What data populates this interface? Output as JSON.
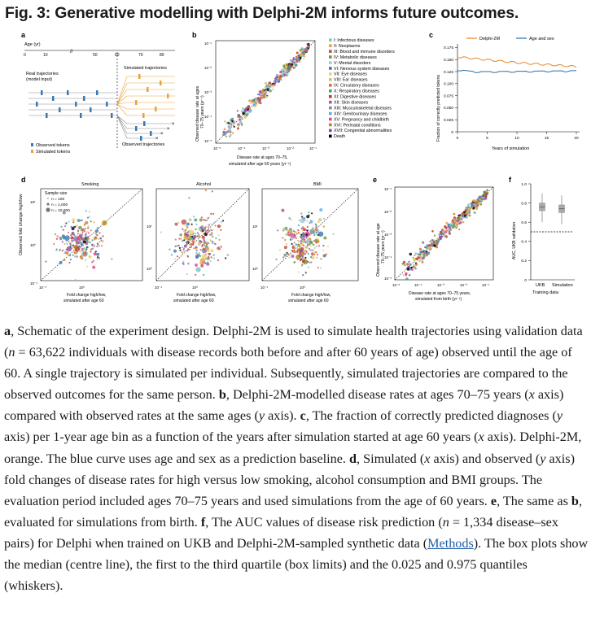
{
  "title": "Fig. 3: Generative modelling with Delphi-2M informs future outcomes.",
  "panel_a": {
    "letter": "a",
    "axis_label": "Age (yr)",
    "ticks": [
      "0",
      "10",
      "50",
      "60",
      "70",
      "80"
    ],
    "sim_label": "Simulated trajectories",
    "real_label_1": "Real trajectories",
    "real_label_2": "(model input)",
    "obs_label": "Observed trajectories",
    "legend_observed": "Observed tokens",
    "legend_simulated": "Simulated tokens"
  },
  "panel_b": {
    "letter": "b",
    "ylabel_1": "Observed disease rate at ages",
    "ylabel_2": "70–75 years (yr⁻¹)",
    "xlabel_1": "Disease rate at ages 70–75,",
    "xlabel_2": "simulated after age 60 years (yr⁻¹)",
    "ticks": [
      "10⁻⁵",
      "10⁻⁴",
      "10⁻³",
      "10⁻²",
      "10⁻¹"
    ],
    "legend": [
      {
        "label": "I: Infectious diseases",
        "color": "#7fc6c7"
      },
      {
        "label": "II: Neoplasms",
        "color": "#e7a33a"
      },
      {
        "label": "III: Blood and immune disorders",
        "color": "#c0504d"
      },
      {
        "label": "IV: Metabolic diseases",
        "color": "#6a9a3b"
      },
      {
        "label": "V: Mental disorders",
        "color": "#a5c8e0"
      },
      {
        "label": "VI: Nervous system diseases",
        "color": "#3a78b0"
      },
      {
        "label": "VII: Eye diseases",
        "color": "#e8d46a"
      },
      {
        "label": "VIII: Ear diseases",
        "color": "#c8c28a"
      },
      {
        "label": "IX: Circulatory diseases",
        "color": "#e07030"
      },
      {
        "label": "X: Respiratory diseases",
        "color": "#3aa58a"
      },
      {
        "label": "XI: Digestive diseases",
        "color": "#c0392b"
      },
      {
        "label": "XII: Skin diseases",
        "color": "#9b59b6"
      },
      {
        "label": "XIII: Musculoskeletal diseases",
        "color": "#7f8c8d"
      },
      {
        "label": "XIV: Genitourinary diseases",
        "color": "#5dade2"
      },
      {
        "label": "XV: Pregnancy and childbirth",
        "color": "#e84393"
      },
      {
        "label": "XVI: Perinatal conditions",
        "color": "#b8860b"
      },
      {
        "label": "XVII: Congenital abnormalities",
        "color": "#8e44ad"
      },
      {
        "label": "Death",
        "color": "#000000"
      }
    ]
  },
  "panel_c": {
    "letter": "c",
    "legend_delphi": "Delphi-2M",
    "legend_baseline": "Age and sex",
    "ylabel": "Fraction of correctly predicted tokens",
    "xlabel": "Years of simulation",
    "yticks": [
      "0",
      "0.025",
      "0.050",
      "0.075",
      "0.100",
      "0.125",
      "0.150",
      "0.175"
    ],
    "xticks": [
      "0",
      "5",
      "10",
      "15",
      "20"
    ]
  },
  "panel_d": {
    "letter": "d",
    "titles": [
      "Smoking",
      "Alcohol",
      "BMI"
    ],
    "legend_title": "Sample size",
    "legend_items": [
      "n = 100",
      "n = 1,000",
      "n = 10,000"
    ],
    "ylabel": "Observed fold change high/low",
    "xlabel_1": "Fold change high/low,",
    "xlabel_2": "simulated after age 60",
    "ticks": [
      "10⁻¹",
      "10⁰",
      "10¹"
    ]
  },
  "panel_e": {
    "letter": "e",
    "ylabel_1": "Observed disease rate at age",
    "ylabel_2": "70–75 years (yr⁻¹)",
    "xlabel_1": "Disease rate at ages 70–75 years,",
    "xlabel_2": "simulated from birth (yr⁻¹)",
    "ticks": [
      "10⁻⁵",
      "10⁻⁴",
      "10⁻³",
      "10⁻²",
      "10⁻¹"
    ]
  },
  "panel_f": {
    "letter": "f",
    "ylabel": "AUC, UKB validation",
    "yticks": [
      "0",
      "0.2",
      "0.4",
      "0.6",
      "0.8",
      "1.0"
    ],
    "categories": [
      "UKB",
      "Simulation"
    ],
    "xlabel": "Training data"
  },
  "caption": {
    "a_label": "a",
    "a_text_1": ", Schematic of the experiment design. Delphi-2M is used to simulate health trajectories using validation data (",
    "a_n": "n",
    "a_text_2": " = 63,622 individuals with disease records both before and after 60 years of age) observed until the age of 60. A single trajectory is simulated per individual. Subsequently, simulated trajectories are compared to the observed outcomes for the same person. ",
    "b_label": "b",
    "b_text_1": ", Delphi-2M-modelled disease rates at ages 70–75 years (",
    "b_x": "x",
    "b_text_2": " axis) compared with observed rates at the same ages (",
    "b_y": "y",
    "b_text_3": " axis). ",
    "c_label": "c",
    "c_text_1": ", The fraction of correctly predicted diagnoses (",
    "c_y": "y",
    "c_text_2": " axis) per 1-year age bin as a function of the years after simulation started at age 60 years (",
    "c_x": "x",
    "c_text_3": " axis). Delphi-2M, orange. The blue curve uses age and sex as a prediction baseline. ",
    "d_label": "d",
    "d_text_1": ", Simulated (",
    "d_x": "x",
    "d_text_2": " axis) and observed (",
    "d_y": "y",
    "d_text_3": " axis) fold changes of disease rates for high versus low smoking, alcohol consumption and BMI groups. The evaluation period included ages 70–75 years and used simulations from the age of 60 years. ",
    "e_label": "e",
    "e_text_1": ", The same as ",
    "e_b": "b",
    "e_text_2": ", evaluated for simulations from birth. ",
    "f_label": "f",
    "f_text_1": ", The AUC values of disease risk prediction (",
    "f_n": "n",
    "f_text_2": " = 1,334 disease–sex pairs) for Delphi when trained on UKB and Delphi-2M-sampled synthetic data (",
    "f_link": "Methods",
    "f_text_3": "). The box plots show the median (centre line), the first to the third quartile (box limits) and the 0.025 and 0.975 quantiles (whiskers)."
  }
}
